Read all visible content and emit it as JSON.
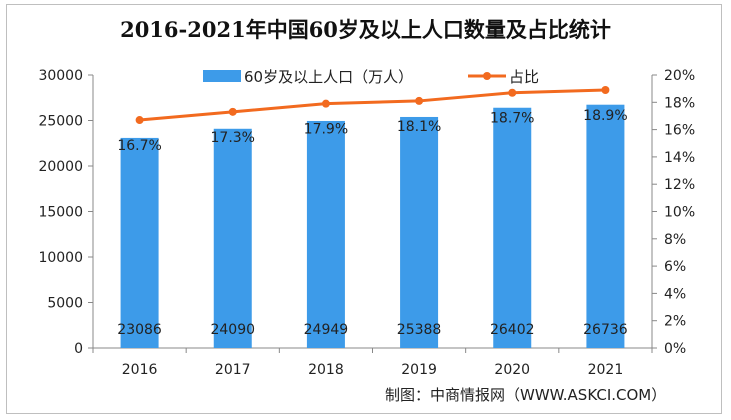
{
  "chart_data": {
    "type": "bar+line",
    "title": "2016-2021年中国60岁及以上人口数量及占比统计",
    "categories": [
      "2016",
      "2017",
      "2018",
      "2019",
      "2020",
      "2021"
    ],
    "series": [
      {
        "name": "60岁及以上人口（万人）",
        "type": "bar",
        "axis": "left",
        "values": [
          23086,
          24090,
          24949,
          25388,
          26402,
          26736
        ],
        "labels": [
          "23086",
          "24090",
          "24949",
          "25388",
          "26402",
          "26736"
        ]
      },
      {
        "name": "占比",
        "type": "line",
        "axis": "right",
        "values": [
          16.7,
          17.3,
          17.9,
          18.1,
          18.7,
          18.9
        ],
        "labels": [
          "16.7%",
          "17.3%",
          "17.9%",
          "18.1%",
          "18.7%",
          "18.9%"
        ]
      }
    ],
    "ylim": [
      0,
      30000
    ],
    "yticks": [
      "0",
      "5000",
      "10000",
      "15000",
      "20000",
      "25000",
      "30000"
    ],
    "y2lim": [
      0,
      20
    ],
    "y2ticks": [
      "0%",
      "2%",
      "4%",
      "6%",
      "8%",
      "10%",
      "12%",
      "14%",
      "16%",
      "18%",
      "20%"
    ],
    "legend": "top",
    "grid": false,
    "colors": {
      "bar": "#3d9be9",
      "line": "#f26a1f"
    }
  },
  "source": "制图：中商情报网（WWW.ASKCI.COM）"
}
